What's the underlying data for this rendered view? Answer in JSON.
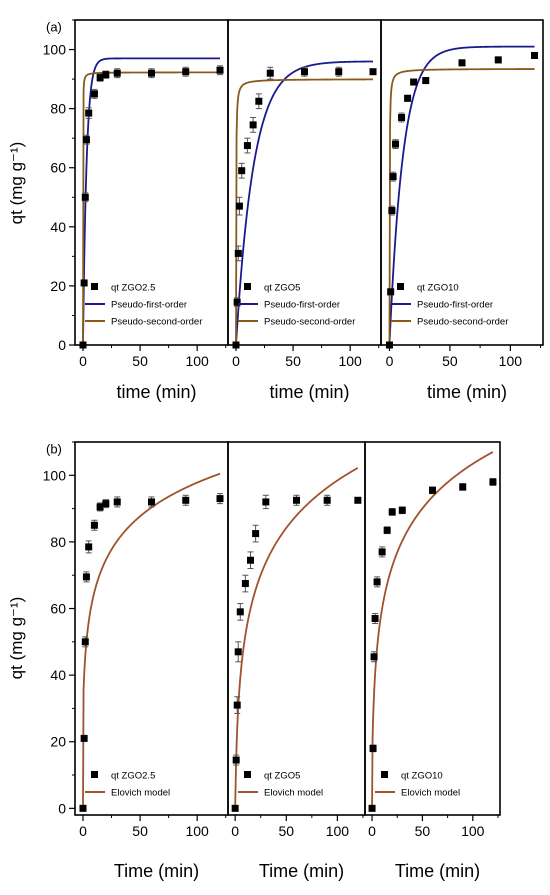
{
  "colors": {
    "pfo": "#1a1a8c",
    "pso": "#8b5a1a",
    "elovich": "#a0522d",
    "marker": "#000000",
    "frame": "#000000"
  },
  "chart_data": [
    {
      "panel_label": "(a)",
      "type": "scatter",
      "ylabel": "qt (mg g⁻¹)",
      "ylim": [
        0,
        110
      ],
      "yticks": [
        0,
        20,
        40,
        60,
        80,
        100
      ],
      "xlim": [
        -7,
        127
      ],
      "xticks": [
        0,
        50,
        100
      ],
      "xlabel": "time (min)",
      "subplots": [
        {
          "legend": [
            "qt ZGO2.5",
            "Pseudo-first-order",
            "Pseudo-second-order"
          ],
          "x": [
            0,
            1,
            2,
            3,
            5,
            10,
            15,
            20,
            30,
            60,
            90,
            120
          ],
          "y": [
            0,
            21,
            50,
            69.5,
            78.5,
            85,
            90.5,
            91.5,
            92,
            92,
            92.5,
            93
          ],
          "yerr": [
            0.5,
            0.8,
            1.5,
            1.5,
            1.8,
            1.5,
            1.2,
            1.2,
            1.5,
            1.5,
            1.5,
            1.5
          ],
          "pfo": {
            "qe": 97.0,
            "k": 0.32,
            "drift": 0.009
          },
          "pso": {
            "qe": 92.3,
            "k": 0.3
          },
          "legend_order": [
            "data",
            "pfo",
            "pso"
          ]
        },
        {
          "legend": [
            "qt ZGO5",
            "Pseudo-first-order",
            "Pseudo-second-order"
          ],
          "x": [
            0,
            1,
            2,
            3,
            5,
            10,
            15,
            20,
            30,
            60,
            90,
            120
          ],
          "y": [
            0,
            14.5,
            31,
            47,
            59,
            67.5,
            74.5,
            82.5,
            92,
            92.5,
            92.5,
            92.5
          ],
          "yerr": [
            0.5,
            1.5,
            2.5,
            3,
            2.5,
            2.5,
            2.5,
            2.5,
            2,
            1.5,
            1.5,
            0.5
          ],
          "pfo": {
            "qe": 96.0,
            "k": 0.065
          },
          "pso": {
            "qe": 90.0,
            "k": 0.08
          },
          "legend_order": [
            "data",
            "pfo",
            "pso"
          ]
        },
        {
          "legend": [
            "qt ZGO10",
            "Pseudo-first-order",
            "Pseudo-second-order"
          ],
          "x": [
            0,
            1,
            2,
            3,
            5,
            10,
            15,
            20,
            30,
            60,
            90,
            120
          ],
          "y": [
            0,
            18,
            45.5,
            57,
            68,
            77,
            83.5,
            89,
            89.5,
            95.5,
            96.5,
            98
          ],
          "yerr": [
            0.5,
            1,
            1.5,
            1.5,
            1.5,
            1.5,
            1,
            1,
            1,
            1,
            1,
            1
          ],
          "pfo": {
            "qe": 101.0,
            "k": 0.09
          },
          "pso": {
            "qe": 93.5,
            "k": 0.085
          },
          "legend_order": [
            "data",
            "pfo",
            "pso"
          ]
        }
      ]
    },
    {
      "panel_label": "(b)",
      "type": "scatter",
      "ylabel": "qt (mg g⁻¹)",
      "ylim": [
        -2,
        110
      ],
      "yticks": [
        0,
        20,
        40,
        60,
        80,
        100
      ],
      "xlim": [
        -7,
        127
      ],
      "xticks": [
        0,
        50,
        100
      ],
      "xlabel": "Time (min)",
      "subplots": [
        {
          "legend": [
            "qt ZGO2.5",
            "Elovich model"
          ],
          "x": [
            0,
            1,
            2,
            3,
            5,
            10,
            15,
            20,
            30,
            60,
            90,
            120
          ],
          "y": [
            0,
            21,
            50,
            69.5,
            78.5,
            85,
            90.5,
            91.5,
            92,
            92,
            92.5,
            93
          ],
          "yerr": [
            0.5,
            0.8,
            1.5,
            1.5,
            1.8,
            1.5,
            1.2,
            1.2,
            1.5,
            1.5,
            1.5,
            1.5
          ],
          "elovich": {
            "a": 29.5,
            "b": 14.8,
            "c": 1.0
          }
        },
        {
          "legend": [
            "qt ZGO5",
            "Elovich model"
          ],
          "x": [
            0,
            1,
            2,
            3,
            5,
            10,
            15,
            20,
            30,
            60,
            90,
            120
          ],
          "y": [
            0,
            14.5,
            31,
            47,
            59,
            67.5,
            74.5,
            82.5,
            92,
            92.5,
            92.5,
            92.5
          ],
          "yerr": [
            0.5,
            1.5,
            2.5,
            3,
            2.5,
            2.5,
            2.5,
            2.5,
            2,
            1.5,
            1.5,
            0.5
          ],
          "elovich": {
            "a": 2.5,
            "b": 20.8,
            "c": 0.8
          }
        },
        {
          "legend": [
            "qt ZGO10",
            "Elovich model"
          ],
          "x": [
            0,
            1,
            2,
            3,
            5,
            10,
            15,
            20,
            30,
            60,
            90,
            120
          ],
          "y": [
            0,
            18,
            45.5,
            57,
            68,
            77,
            83.5,
            89,
            89.5,
            95.5,
            96.5,
            98
          ],
          "yerr": [
            0.5,
            1,
            1.5,
            1.5,
            1.5,
            1.5,
            1,
            1,
            1,
            1,
            1,
            1
          ],
          "elovich": {
            "a": 13.0,
            "b": 19.6,
            "c": 1.0
          }
        }
      ]
    }
  ]
}
